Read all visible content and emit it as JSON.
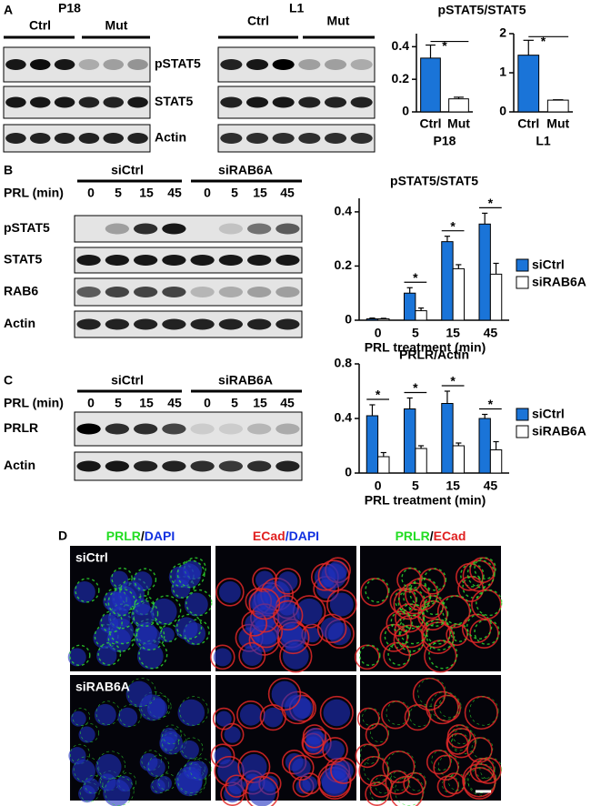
{
  "chart_data": [
    {
      "type": "bar",
      "categories": [
        "Ctrl",
        "Mut"
      ],
      "values": [
        0.33,
        0.08
      ],
      "errors": [
        0.08,
        0.01
      ],
      "colors": [
        "#1a74d8",
        "#ffffff"
      ],
      "x_label": "P18",
      "ylim": [
        0,
        0.48
      ],
      "yticks": [
        0,
        0.2,
        0.4
      ],
      "annotation": "*"
    },
    {
      "type": "bar",
      "categories": [
        "Ctrl",
        "Mut"
      ],
      "values": [
        1.45,
        0.3
      ],
      "errors": [
        0.38,
        0.01
      ],
      "colors": [
        "#1a74d8",
        "#ffffff"
      ],
      "x_label": "L1",
      "ylim": [
        0,
        2
      ],
      "yticks": [
        0,
        1,
        2
      ],
      "annotation": "*"
    },
    {
      "type": "grouped_bar",
      "title": "pSTAT5/STAT5",
      "categories": [
        "0",
        "5",
        "15",
        "45"
      ],
      "x_label": "PRL treatment (min)",
      "series": [
        {
          "name": "siCtrl",
          "color": "#1a74d8",
          "values": [
            0.005,
            0.1,
            0.29,
            0.355
          ],
          "errors": [
            0.003,
            0.02,
            0.02,
            0.04
          ]
        },
        {
          "name": "siRAB6A",
          "color": "#ffffff",
          "values": [
            0.005,
            0.035,
            0.19,
            0.17
          ],
          "errors": [
            0.002,
            0.01,
            0.015,
            0.04
          ]
        }
      ],
      "ylim": [
        0,
        0.45
      ],
      "yticks": [
        0,
        0.2,
        0.4
      ],
      "legend": "right",
      "annotation": "*",
      "significant": [
        false,
        true,
        true,
        true
      ]
    },
    {
      "type": "grouped_bar",
      "title": "PRLR/Actin",
      "categories": [
        "0",
        "5",
        "15",
        "45"
      ],
      "x_label": "PRL treatment (min)",
      "series": [
        {
          "name": "siCtrl",
          "color": "#1a74d8",
          "values": [
            0.42,
            0.47,
            0.51,
            0.4
          ],
          "errors": [
            0.08,
            0.08,
            0.09,
            0.03
          ]
        },
        {
          "name": "siRAB6A",
          "color": "#ffffff",
          "values": [
            0.12,
            0.18,
            0.2,
            0.17
          ],
          "errors": [
            0.03,
            0.02,
            0.02,
            0.06
          ]
        }
      ],
      "ylim": [
        0,
        0.8
      ],
      "yticks": [
        0,
        0.4,
        0.8
      ],
      "legend": "right",
      "annotation": "*",
      "significant": [
        true,
        true,
        true,
        true
      ]
    }
  ],
  "panels": {
    "A": {
      "label": "A",
      "chart_title": "pSTAT5/STAT5",
      "rows": [
        "pSTAT5",
        "STAT5",
        "Actin"
      ],
      "blots": [
        {
          "title": "P18",
          "groups": [
            "Ctrl",
            "Mut"
          ]
        },
        {
          "title": "L1",
          "groups": [
            "Ctrl",
            "Mut"
          ]
        }
      ]
    },
    "B": {
      "label": "B",
      "groups": [
        "siCtrl",
        "siRAB6A"
      ],
      "lane_header": "PRL (min)",
      "lanes": [
        "0",
        "5",
        "15",
        "45",
        "0",
        "5",
        "15",
        "45"
      ],
      "rows": [
        "pSTAT5",
        "STAT5",
        "RAB6",
        "Actin"
      ]
    },
    "C": {
      "label": "C",
      "groups": [
        "siCtrl",
        "siRAB6A"
      ],
      "lane_header": "PRL (min)",
      "lanes": [
        "0",
        "5",
        "15",
        "45",
        "0",
        "5",
        "15",
        "45"
      ],
      "rows": [
        "PRLR",
        "Actin"
      ]
    },
    "D": {
      "label": "D",
      "rows": [
        "siCtrl",
        "siRAB6A"
      ],
      "columns": [
        [
          {
            "text": "PRLR",
            "color": "#22dd22"
          },
          {
            "text": "/",
            "color": "#000000"
          },
          {
            "text": "DAPI",
            "color": "#1030e0"
          }
        ],
        [
          {
            "text": "ECad",
            "color": "#e02020"
          },
          {
            "text": "/DAPI",
            "color": "#1030e0"
          }
        ],
        [
          {
            "text": "PRLR",
            "color": "#22dd22"
          },
          {
            "text": "/",
            "color": "#000000"
          },
          {
            "text": "ECad",
            "color": "#e02020"
          }
        ]
      ]
    }
  }
}
